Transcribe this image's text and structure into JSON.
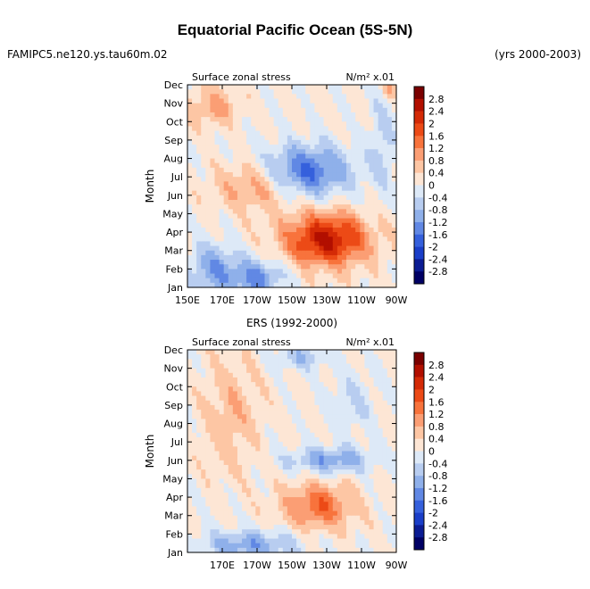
{
  "header": {
    "title": "Equatorial Pacific Ocean (5S-5N)",
    "run_name": "FAMIPC5.ne120.ys.tau60m.02",
    "years": "(yrs 2000-2003)"
  },
  "colorbar": {
    "levels": [
      "2.8",
      "2.4",
      "2",
      "1.6",
      "1.2",
      "0.8",
      "0.4",
      "0",
      "-0.4",
      "-0.8",
      "-1.2",
      "-1.6",
      "-2",
      "-2.4",
      "-2.8"
    ],
    "colors": [
      "#7a0000",
      "#b20f00",
      "#d42a06",
      "#ec4a16",
      "#f8733c",
      "#fb9e74",
      "#fdc6a4",
      "#fde6d5",
      "#dde9f7",
      "#b8cdf0",
      "#8fb0ea",
      "#6188e4",
      "#3560dc",
      "#1a3ec8",
      "#0b1c93",
      "#000064"
    ]
  },
  "chart_data": [
    {
      "type": "heatmap",
      "title": "",
      "panel_label_left": "Surface zonal stress",
      "panel_label_right": "N/m² x.01",
      "ylabel": "Month",
      "months": [
        "Jan",
        "Feb",
        "Mar",
        "Apr",
        "May",
        "Jun",
        "Jul",
        "Aug",
        "Sep",
        "Oct",
        "Nov",
        "Dec"
      ],
      "x_ticks": [
        "150E",
        "170E",
        "170W",
        "150W",
        "130W",
        "110W",
        "90W"
      ],
      "x_range_deg_east": [
        150,
        270
      ],
      "features": [
        {
          "value": -1.2,
          "lon": 165,
          "month": 2,
          "lon_spread": 14,
          "month_spread": 1.4
        },
        {
          "value": -1.4,
          "lon": 190,
          "month": 1.5,
          "lon_spread": 16,
          "month_spread": 1.0
        },
        {
          "value": -1.8,
          "lon": 218,
          "month": 7.3,
          "lon_spread": 25,
          "month_spread": 1.4
        },
        {
          "value": -0.6,
          "lon": 262,
          "month": 9.0,
          "lon_spread": 8,
          "month_spread": 3.0
        },
        {
          "value": 2.4,
          "lon": 230,
          "month": 3.6,
          "lon_spread": 24,
          "month_spread": 1.4
        },
        {
          "value": 1.0,
          "lon": 190,
          "month": 6.5,
          "lon_spread": 22,
          "month_spread": 1.3
        },
        {
          "value": 0.8,
          "lon": 165,
          "month": 10.8,
          "lon_spread": 14,
          "month_spread": 1.0
        },
        {
          "value": 0.8,
          "lon": 266,
          "month": 11.9,
          "lon_spread": 4,
          "month_spread": 0.7
        }
      ]
    },
    {
      "type": "heatmap",
      "title": "ERS (1992-2000)",
      "panel_label_left": "Surface zonal stress",
      "panel_label_right": "N/m² x.01",
      "ylabel": "Month",
      "months": [
        "Jan",
        "Feb",
        "Mar",
        "Apr",
        "May",
        "Jun",
        "Jul",
        "Aug",
        "Sep",
        "Oct",
        "Nov",
        "Dec"
      ],
      "x_ticks": [
        "170E",
        "170W",
        "150W",
        "130W",
        "110W",
        "90W"
      ],
      "x_range_deg_east": [
        150,
        270
      ],
      "features": [
        {
          "value": -1.2,
          "lon": 185,
          "month": 1.4,
          "lon_spread": 28,
          "month_spread": 0.8
        },
        {
          "value": -1.2,
          "lon": 232,
          "month": 6.0,
          "lon_spread": 25,
          "month_spread": 0.7
        },
        {
          "value": -0.8,
          "lon": 215,
          "month": 11.6,
          "lon_spread": 15,
          "month_spread": 0.7
        },
        {
          "value": -0.5,
          "lon": 245,
          "month": 9.2,
          "lon_spread": 14,
          "month_spread": 1.8
        },
        {
          "value": 1.4,
          "lon": 225,
          "month": 3.5,
          "lon_spread": 20,
          "month_spread": 1.2
        },
        {
          "value": 0.6,
          "lon": 175,
          "month": 8.5,
          "lon_spread": 16,
          "month_spread": 3.0
        }
      ]
    }
  ]
}
